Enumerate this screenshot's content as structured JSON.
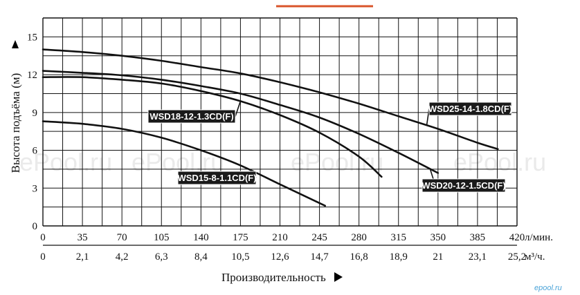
{
  "chart_data": {
    "type": "line",
    "title": "",
    "ylabel": "Высота подъёма (м)",
    "xlabel": "Производительность",
    "x_unit": "л/мин.",
    "x2_unit": "м³/ч.",
    "xlim": [
      0,
      420
    ],
    "ylim": [
      0,
      16.5
    ],
    "grid": true,
    "x_ticks": [
      "0",
      "35",
      "70",
      "105",
      "140",
      "175",
      "210",
      "245",
      "280",
      "315",
      "350",
      "385",
      "420"
    ],
    "x2_ticks": [
      "0",
      "2,1",
      "4,2",
      "6,3",
      "8,4",
      "10,5",
      "12,6",
      "14,7",
      "16,8",
      "18,9",
      "21",
      "23,1",
      "25,2"
    ],
    "y_ticks": [
      "0",
      "3",
      "6",
      "9",
      "12",
      "15"
    ],
    "series": [
      {
        "name": "WSD25-14-1.8CD(F)",
        "x": [
          0,
          35,
          70,
          105,
          140,
          175,
          210,
          245,
          280,
          315,
          350,
          385,
          403
        ],
        "y": [
          14.0,
          13.8,
          13.5,
          13.1,
          12.6,
          12.1,
          11.4,
          10.6,
          9.7,
          8.7,
          7.7,
          6.6,
          6.1
        ]
      },
      {
        "name": "WSD20-12-1.5CD(F)",
        "x": [
          0,
          35,
          70,
          105,
          140,
          175,
          210,
          245,
          280,
          315,
          350
        ],
        "y": [
          12.3,
          12.15,
          11.95,
          11.6,
          11.1,
          10.5,
          9.6,
          8.6,
          7.3,
          5.8,
          4.2
        ]
      },
      {
        "name": "WSD18-12-1.3CD(F)",
        "x": [
          0,
          35,
          70,
          105,
          140,
          175,
          210,
          245,
          280,
          300
        ],
        "y": [
          11.8,
          11.8,
          11.6,
          11.3,
          10.7,
          9.9,
          8.8,
          7.4,
          5.5,
          3.9
        ]
      },
      {
        "name": "WSD15-8-1.1CD(F)",
        "x": [
          0,
          35,
          70,
          105,
          140,
          175,
          210,
          250
        ],
        "y": [
          8.3,
          8.1,
          7.7,
          7.0,
          6.0,
          4.8,
          3.3,
          1.6
        ]
      }
    ],
    "labels": [
      {
        "series": "WSD18-12-1.3CD(F)",
        "text": "WSD18-12-1.3CD(F)"
      },
      {
        "series": "WSD15-8-1.1CD(F)",
        "text": "WSD15-8-1.1CD(F)"
      },
      {
        "series": "WSD25-14-1.8CD(F)",
        "text": "WSD25-14-1.8CD(F)"
      },
      {
        "series": "WSD20-12-1.5CD(F)",
        "text": "WSD20-12-1.5CD(F)"
      }
    ]
  },
  "watermark": "ePool.ru",
  "corner_logo": "epool.ru",
  "colors": {
    "accent_bar": "#d9542a",
    "line": "#111111",
    "label_bg": "#1a1a1a",
    "watermark": "#d9d9d9",
    "corner_logo": "#4aa3d8"
  }
}
